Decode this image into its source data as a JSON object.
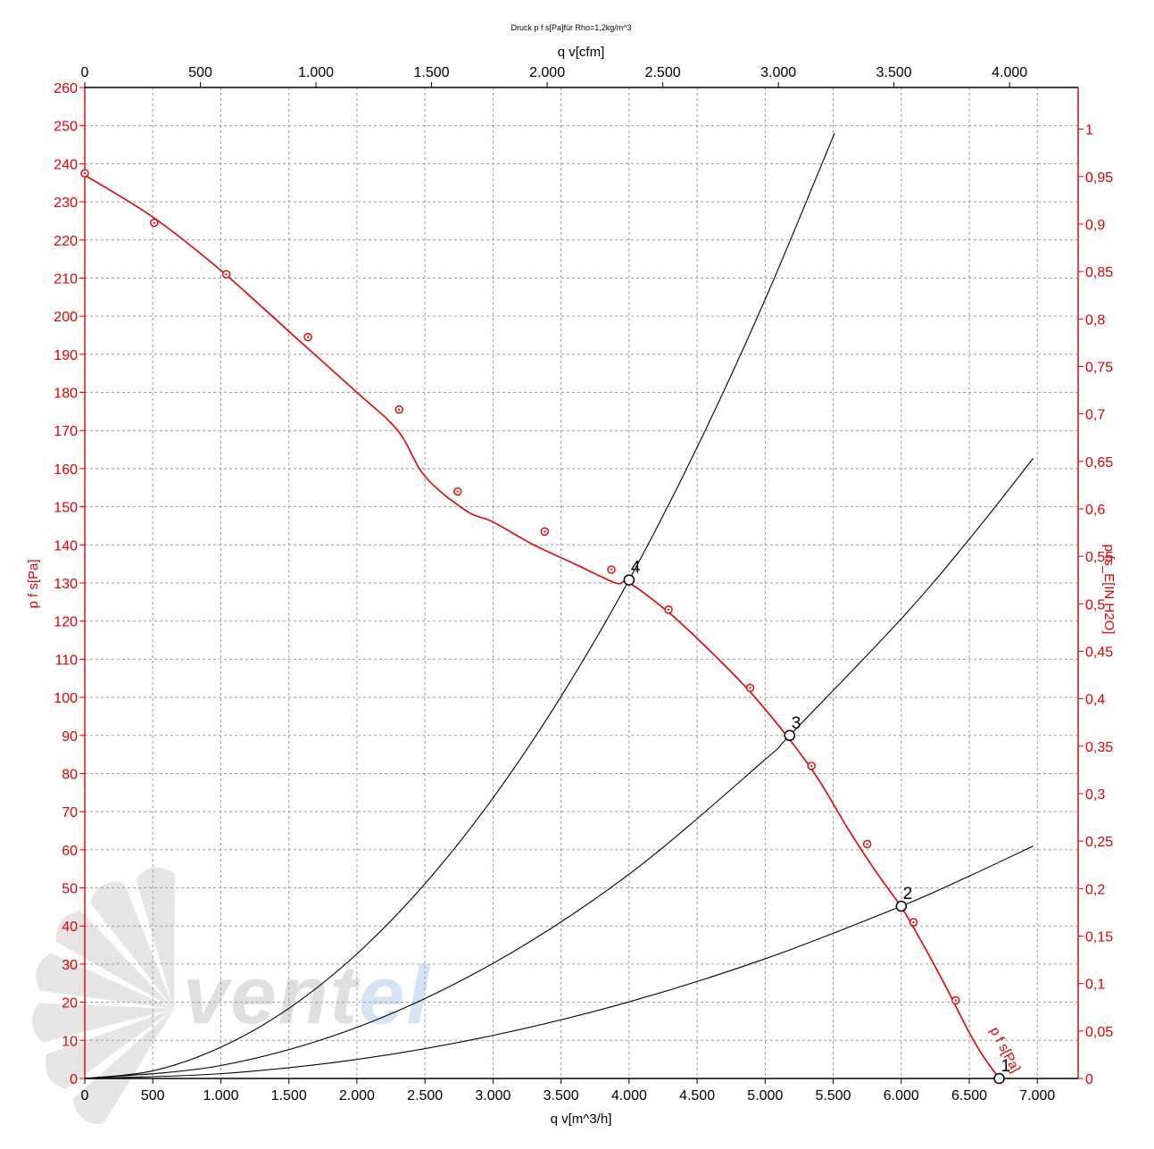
{
  "chart_data": {
    "type": "line",
    "title": "Druck p f s[Pa]für Rho=1,2kg/m^3",
    "xlabel": "q v[m^3/h]",
    "x2label": "q v[cfm]",
    "ylabel": "p f s[Pa]",
    "y2label": "p fs_E[IN H2O]",
    "xlim": [
      0,
      7300
    ],
    "ylim": [
      0,
      260
    ],
    "x_ticks": [
      "0",
      "500",
      "1.000",
      "1.500",
      "2.000",
      "2.500",
      "3.000",
      "3.500",
      "4.000",
      "4.500",
      "5.000",
      "5.500",
      "6.000",
      "6.500",
      "7.000"
    ],
    "x2_ticks": [
      "0",
      "500",
      "1.000",
      "1.500",
      "2.000",
      "2.500",
      "3.000",
      "3.500",
      "4.000"
    ],
    "y_ticks": [
      "0",
      "10",
      "20",
      "30",
      "40",
      "50",
      "60",
      "70",
      "80",
      "90",
      "100",
      "110",
      "120",
      "130",
      "140",
      "150",
      "160",
      "170",
      "180",
      "190",
      "200",
      "210",
      "220",
      "230",
      "240",
      "250",
      "260"
    ],
    "y2_ticks": [
      "0",
      "0,05",
      "0,1",
      "0,15",
      "0,2",
      "0,25",
      "0,3",
      "0,35",
      "0,4",
      "0,45",
      "0,5",
      "0,55",
      "0,6",
      "0,65",
      "0,7",
      "0,75",
      "0,8",
      "0,85",
      "0,9",
      "0,95",
      "1"
    ],
    "grid": true,
    "colors": {
      "fan_curve": "#e00000",
      "system_curves": "#000000",
      "axis_primary": "#e00000",
      "axis_secondary": "#000000"
    },
    "fan_curve": {
      "label": "p f s[Pa]",
      "x": [
        0,
        500,
        1000,
        1500,
        2000,
        2300,
        2500,
        2800,
        3000,
        3300,
        3600,
        3900,
        4000,
        4300,
        4600,
        4900,
        5200,
        5400,
        5600,
        5800,
        6000,
        6100,
        6300,
        6500,
        6600,
        6720
      ],
      "y": [
        237,
        226,
        212,
        196,
        180,
        170,
        158,
        149,
        146,
        140,
        135,
        130,
        130,
        122,
        112,
        101,
        88,
        78,
        66,
        55,
        45,
        39,
        26,
        12,
        6,
        0
      ]
    },
    "fan_markers": {
      "x": [
        0,
        510,
        1040,
        1640,
        2310,
        2740,
        3380,
        3870,
        4290,
        4890,
        5340,
        5750,
        6090,
        6400,
        6720
      ],
      "y": [
        237.5,
        224.5,
        211,
        194.5,
        175.5,
        154,
        143.5,
        133.5,
        123,
        102.5,
        82,
        61.5,
        41,
        20.5,
        0
      ]
    },
    "system_curves": [
      {
        "x": [
          0,
          500,
          1000,
          1500,
          2000,
          2500,
          3000,
          3500,
          4000,
          4500,
          5000,
          5510
        ],
        "y": [
          0,
          2,
          8.2,
          18.4,
          32.7,
          51.1,
          73.6,
          100.2,
          130.8,
          165.6,
          204.4,
          248
        ]
      },
      {
        "x": [
          0,
          1000,
          2000,
          3000,
          4000,
          5000,
          5180,
          6000,
          6500,
          6970
        ],
        "y": [
          0,
          3.4,
          13.4,
          30.2,
          53.6,
          83.7,
          90,
          120.6,
          141.5,
          162.7
        ]
      },
      {
        "x": [
          0,
          1000,
          2000,
          3000,
          4000,
          5000,
          6000,
          6500,
          6970
        ],
        "y": [
          0,
          1.26,
          5,
          11.3,
          20.1,
          31.4,
          45.2,
          53.1,
          61
        ]
      }
    ],
    "operating_points": [
      {
        "label": "1",
        "x": 6720,
        "y": 0
      },
      {
        "label": "2",
        "x": 6000,
        "y": 45.2
      },
      {
        "label": "3",
        "x": 5180,
        "y": 90
      },
      {
        "label": "4",
        "x": 4000,
        "y": 130.8
      }
    ],
    "watermark": "ventel"
  }
}
